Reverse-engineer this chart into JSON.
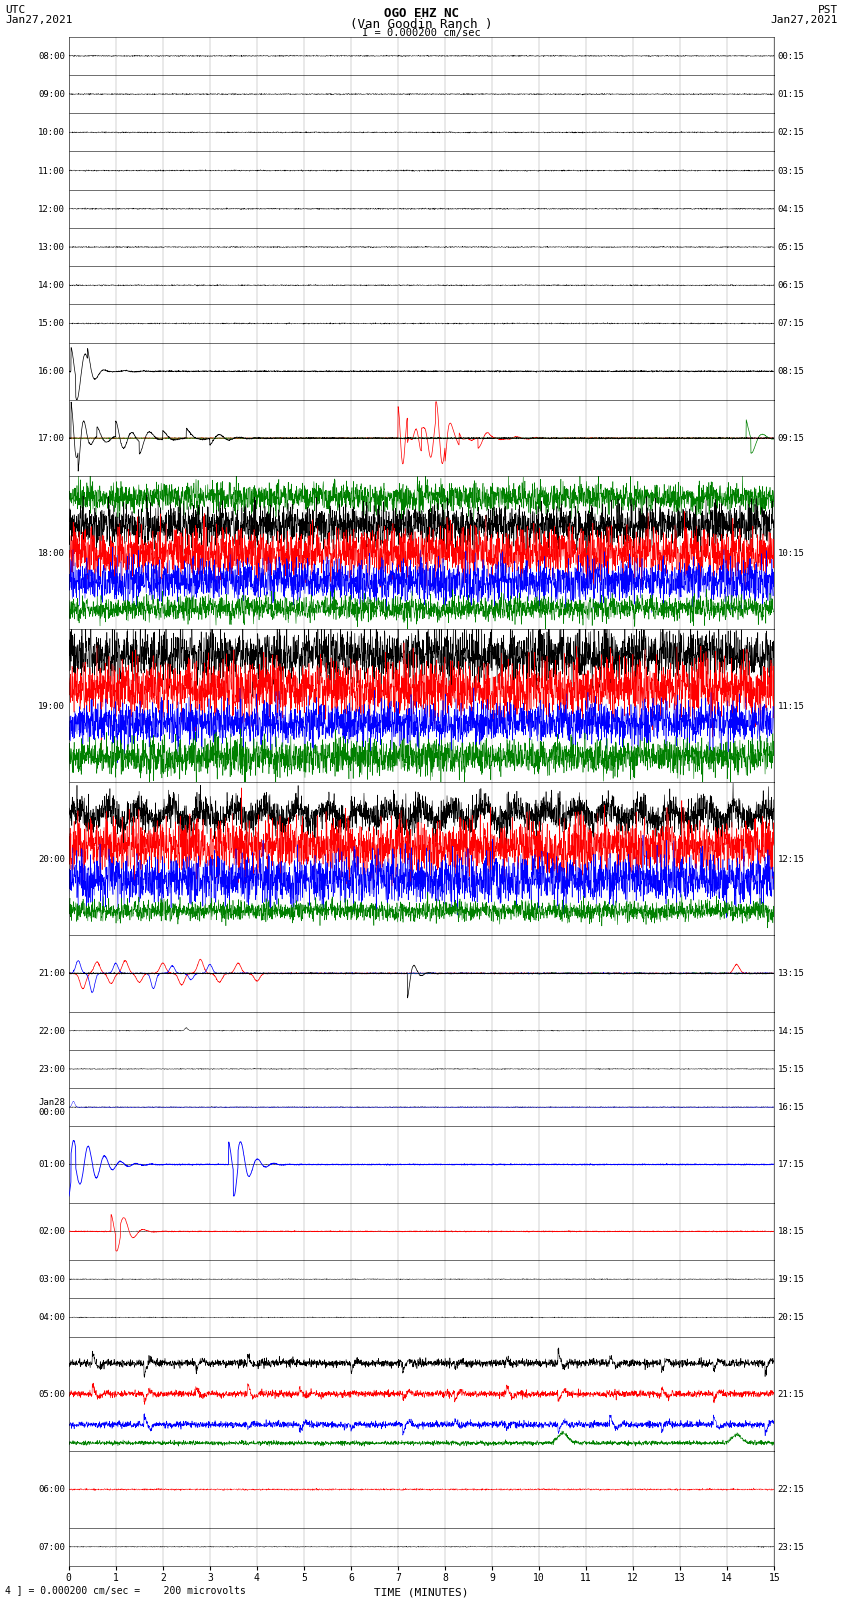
{
  "title_line1": "OGO EHZ NC",
  "title_line2": "(Van Goodin Ranch )",
  "title_line3": "I = 0.000200 cm/sec",
  "utc_label": "UTC",
  "utc_date": "Jan27,2021",
  "pst_label": "PST",
  "pst_date": "Jan27,2021",
  "xlabel": "TIME (MINUTES)",
  "footer": "4 ] = 0.000200 cm/sec =    200 microvolts",
  "left_times_utc": [
    "08:00",
    "09:00",
    "10:00",
    "11:00",
    "12:00",
    "13:00",
    "14:00",
    "15:00",
    "16:00",
    "17:00",
    "18:00",
    "19:00",
    "20:00",
    "21:00",
    "22:00",
    "23:00",
    "Jan28\n00:00",
    "01:00",
    "02:00",
    "03:00",
    "04:00",
    "05:00",
    "06:00",
    "07:00"
  ],
  "right_times_pst": [
    "00:15",
    "01:15",
    "02:15",
    "03:15",
    "04:15",
    "05:15",
    "06:15",
    "07:15",
    "08:15",
    "09:15",
    "10:15",
    "11:15",
    "12:15",
    "13:15",
    "14:15",
    "15:15",
    "16:15",
    "17:15",
    "18:15",
    "19:15",
    "20:15",
    "21:15",
    "22:15",
    "23:15"
  ],
  "num_rows": 24,
  "xmin": 0,
  "xmax": 15,
  "background_color": "#ffffff",
  "grid_color": "#999999",
  "trace_color_black": "#000000",
  "trace_color_red": "#ff0000",
  "trace_color_blue": "#0000ff",
  "trace_color_green": "#008000",
  "figsize": [
    8.5,
    16.13
  ],
  "dpi": 100,
  "row_weights": [
    1,
    1,
    1,
    1,
    1,
    1,
    1,
    1,
    1.5,
    2,
    4,
    4,
    4,
    2,
    1,
    1,
    1,
    2,
    1.5,
    1,
    1,
    3,
    2,
    1
  ]
}
